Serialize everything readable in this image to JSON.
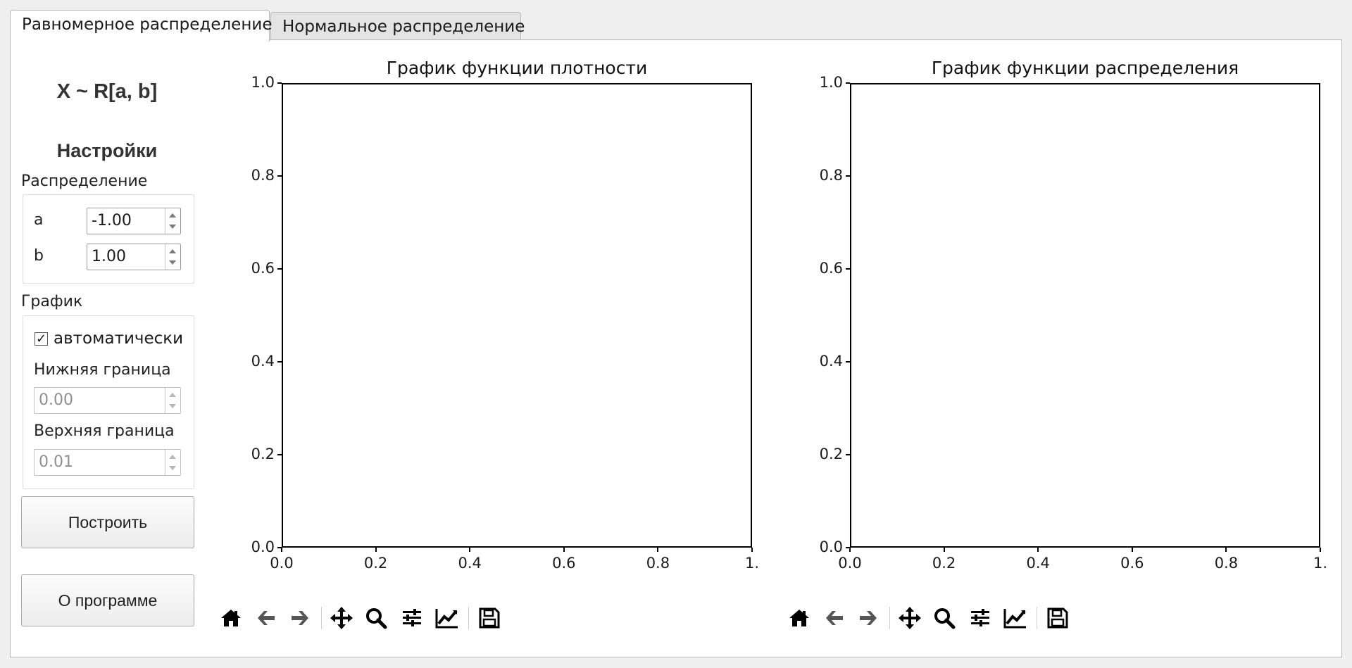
{
  "tabs": [
    {
      "label": "Равномерное распределение",
      "active": true
    },
    {
      "label": "Нормальное распределение",
      "active": false
    }
  ],
  "sidebar": {
    "formula": "X ~ R[a, b]",
    "settings_title": "Настройки",
    "distribution_group": "Распределение",
    "params": [
      {
        "label": "a",
        "value": "-1.00"
      },
      {
        "label": "b",
        "value": "1.00"
      }
    ],
    "graph_group": "График",
    "auto_label": "автоматически",
    "auto_checked": true,
    "lower_label": "Нижняя граница",
    "lower_value": "0.00",
    "upper_label": "Верхняя граница",
    "upper_value": "0.01",
    "build_button": "Построить",
    "about_button": "О программе"
  },
  "toolbar_icons": [
    "home-icon",
    "back-arrow-icon",
    "forward-arrow-icon",
    "pan-icon",
    "zoom-icon",
    "configure-subplots-icon",
    "edit-axis-icon",
    "save-icon"
  ],
  "chart_data": [
    {
      "type": "line",
      "title": "График функции плотности",
      "xlabel": "",
      "ylabel": "",
      "xlim": [
        0.0,
        1.0
      ],
      "ylim": [
        0.0,
        1.0
      ],
      "xticks": [
        "0.0",
        "0.2",
        "0.4",
        "0.6",
        "0.8",
        "1."
      ],
      "yticks": [
        "0.0",
        "0.2",
        "0.4",
        "0.6",
        "0.8",
        "1.0"
      ],
      "series": []
    },
    {
      "type": "line",
      "title": "График функции распределения",
      "xlabel": "",
      "ylabel": "",
      "xlim": [
        0.0,
        1.0
      ],
      "ylim": [
        0.0,
        1.0
      ],
      "xticks": [
        "0.0",
        "0.2",
        "0.4",
        "0.6",
        "0.8",
        "1."
      ],
      "yticks": [
        "0.0",
        "0.2",
        "0.4",
        "0.6",
        "0.8",
        "1.0"
      ],
      "series": []
    }
  ]
}
